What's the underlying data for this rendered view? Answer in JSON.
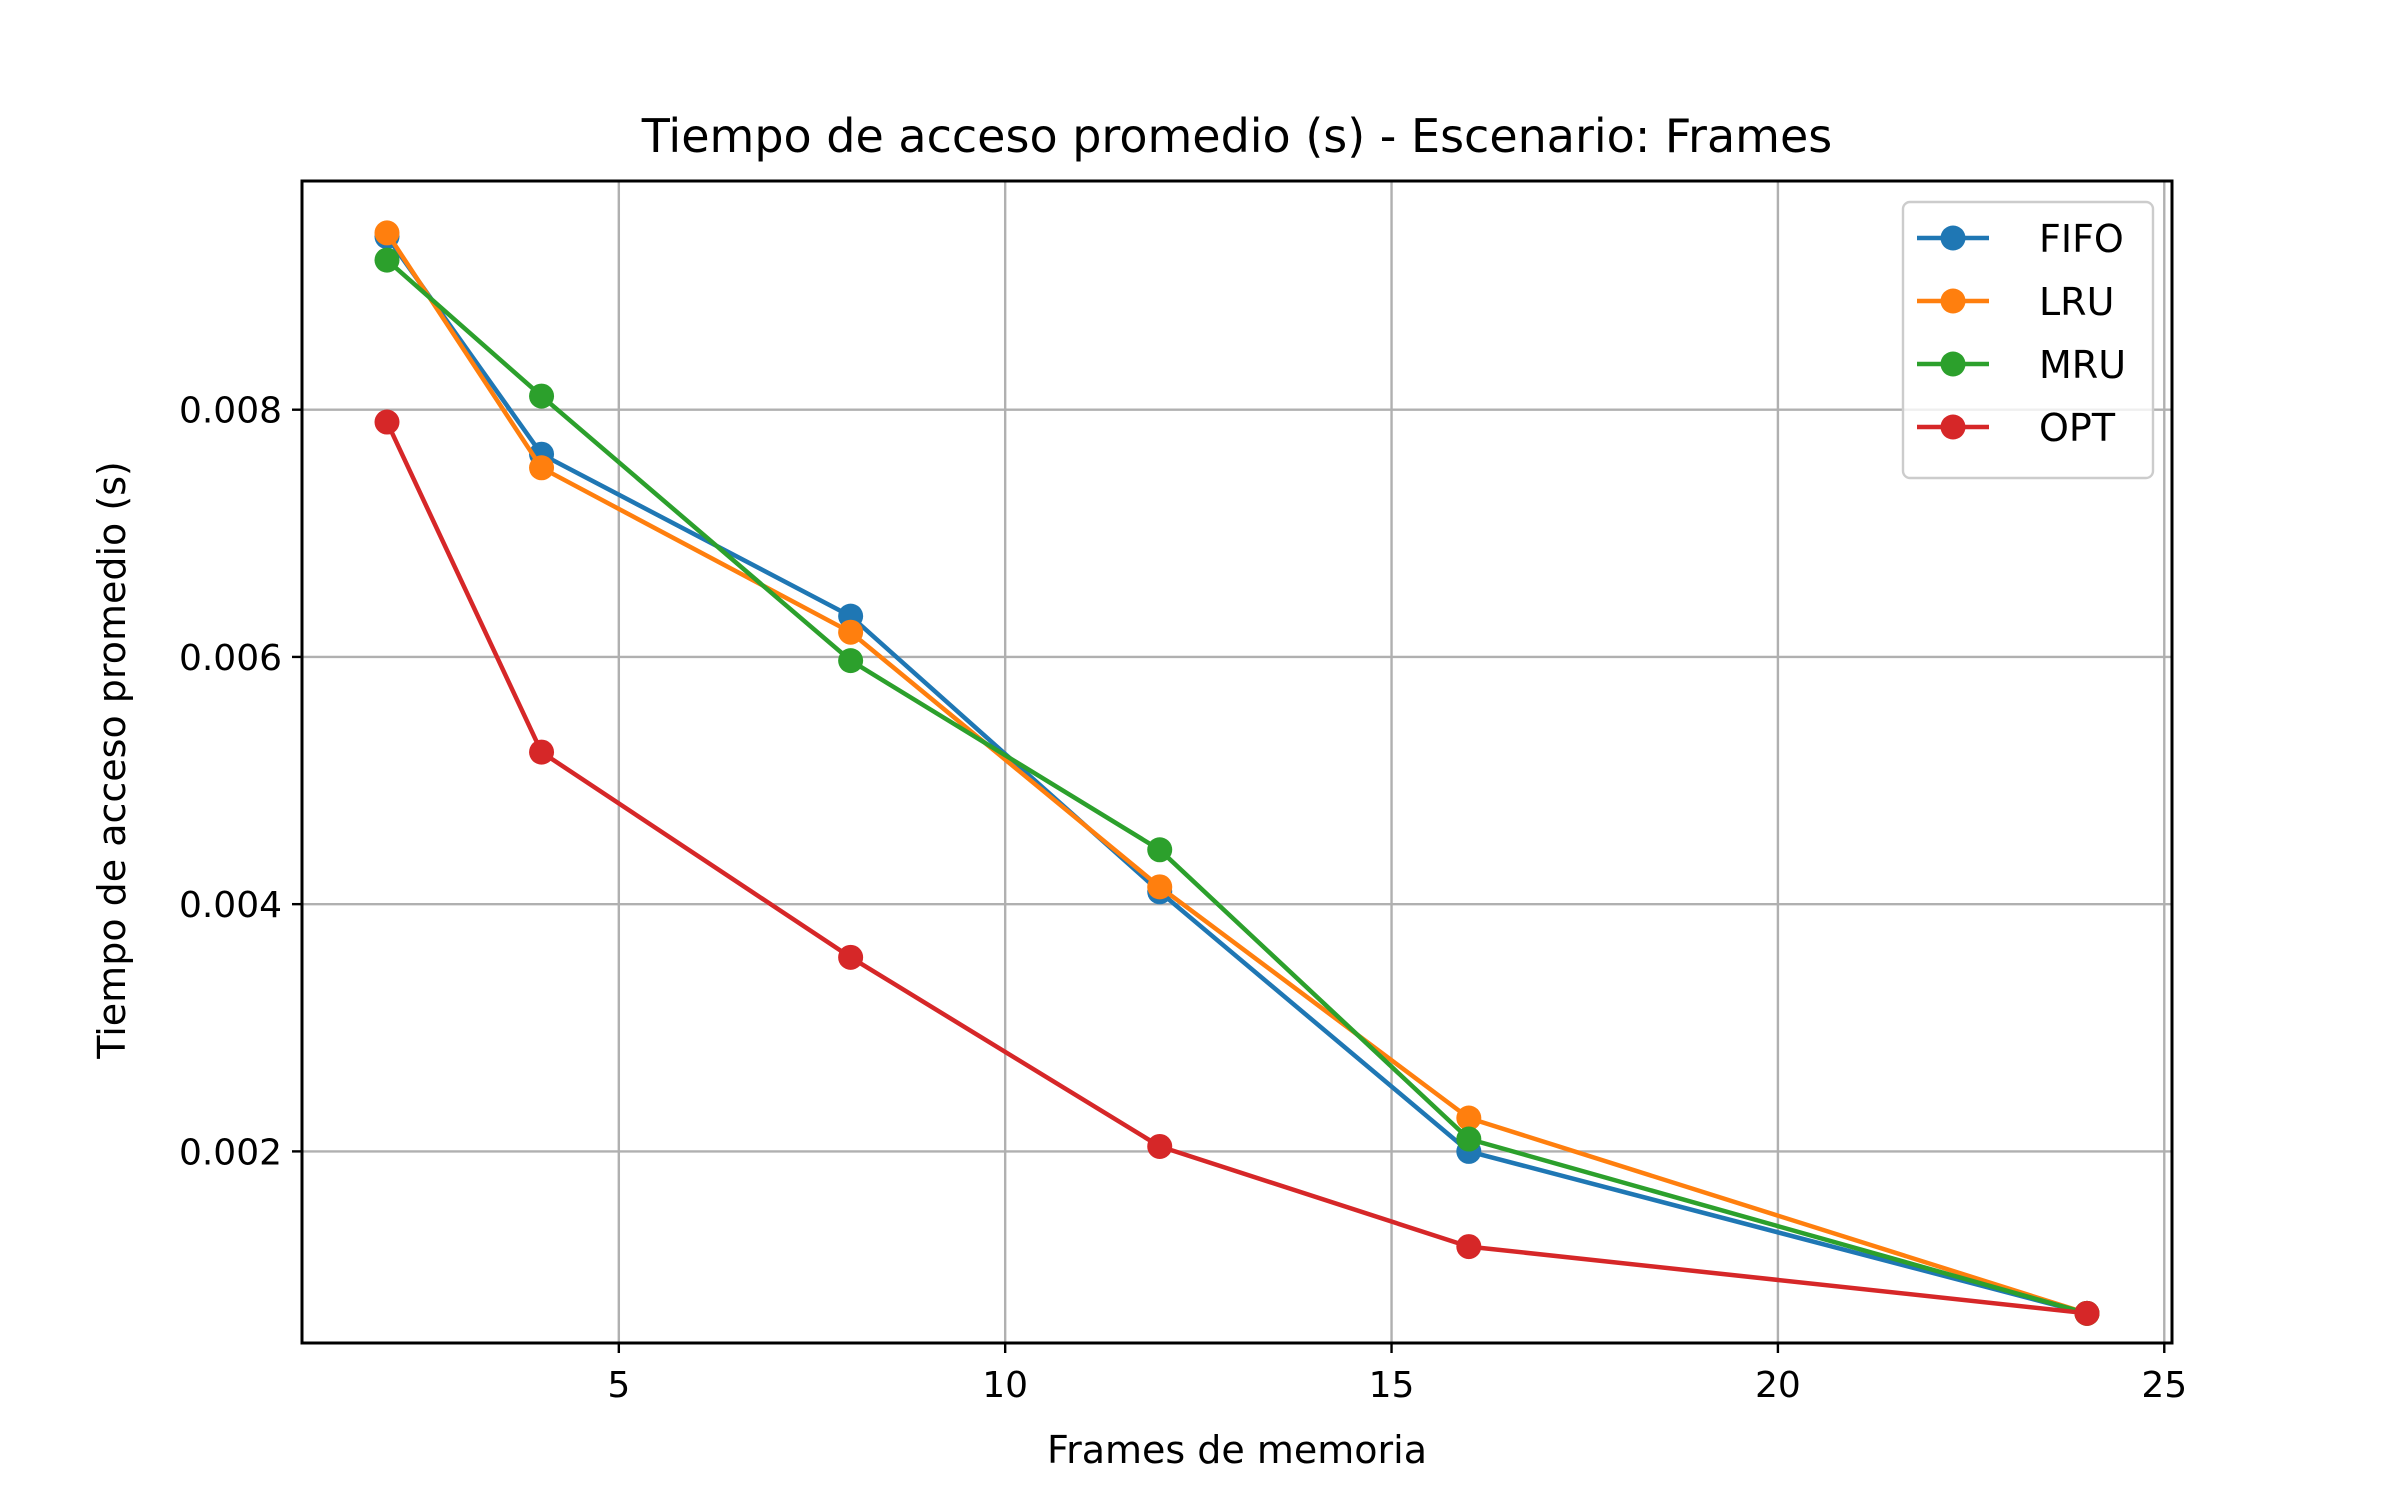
{
  "chart_data": {
    "type": "line",
    "title": "Tiempo de acceso promedio (s) - Escenario: Frames",
    "xlabel": "Frames de memoria",
    "ylabel": "Tiempo de acceso promedio (s)",
    "xlim": [
      0.9,
      25.1
    ],
    "ylim": [
      0.00045,
      0.00985
    ],
    "xticks": [
      5,
      10,
      15,
      20,
      25
    ],
    "xtick_labels": [
      "5",
      "10",
      "15",
      "20",
      "25"
    ],
    "yticks": [
      0.002,
      0.004,
      0.006,
      0.008
    ],
    "ytick_labels": [
      "0.002",
      "0.004",
      "0.006",
      "0.008"
    ],
    "grid": true,
    "legend_position": "top-right",
    "x": [
      2,
      4,
      8,
      12,
      16,
      24
    ],
    "series": [
      {
        "name": "FIFO",
        "color": "#1f77b4",
        "values": [
          0.0094,
          0.00764,
          0.00633,
          0.0041,
          0.002,
          0.00069
        ]
      },
      {
        "name": "LRU",
        "color": "#ff7f0e",
        "values": [
          0.00943,
          0.00753,
          0.0062,
          0.00414,
          0.00227,
          0.00069
        ]
      },
      {
        "name": "MRU",
        "color": "#2ca02c",
        "values": [
          0.00921,
          0.00811,
          0.00597,
          0.00444,
          0.0021,
          0.00069
        ]
      },
      {
        "name": "OPT",
        "color": "#d62728",
        "values": [
          0.0079,
          0.00523,
          0.00357,
          0.00204,
          0.00123,
          0.00069
        ]
      }
    ]
  }
}
